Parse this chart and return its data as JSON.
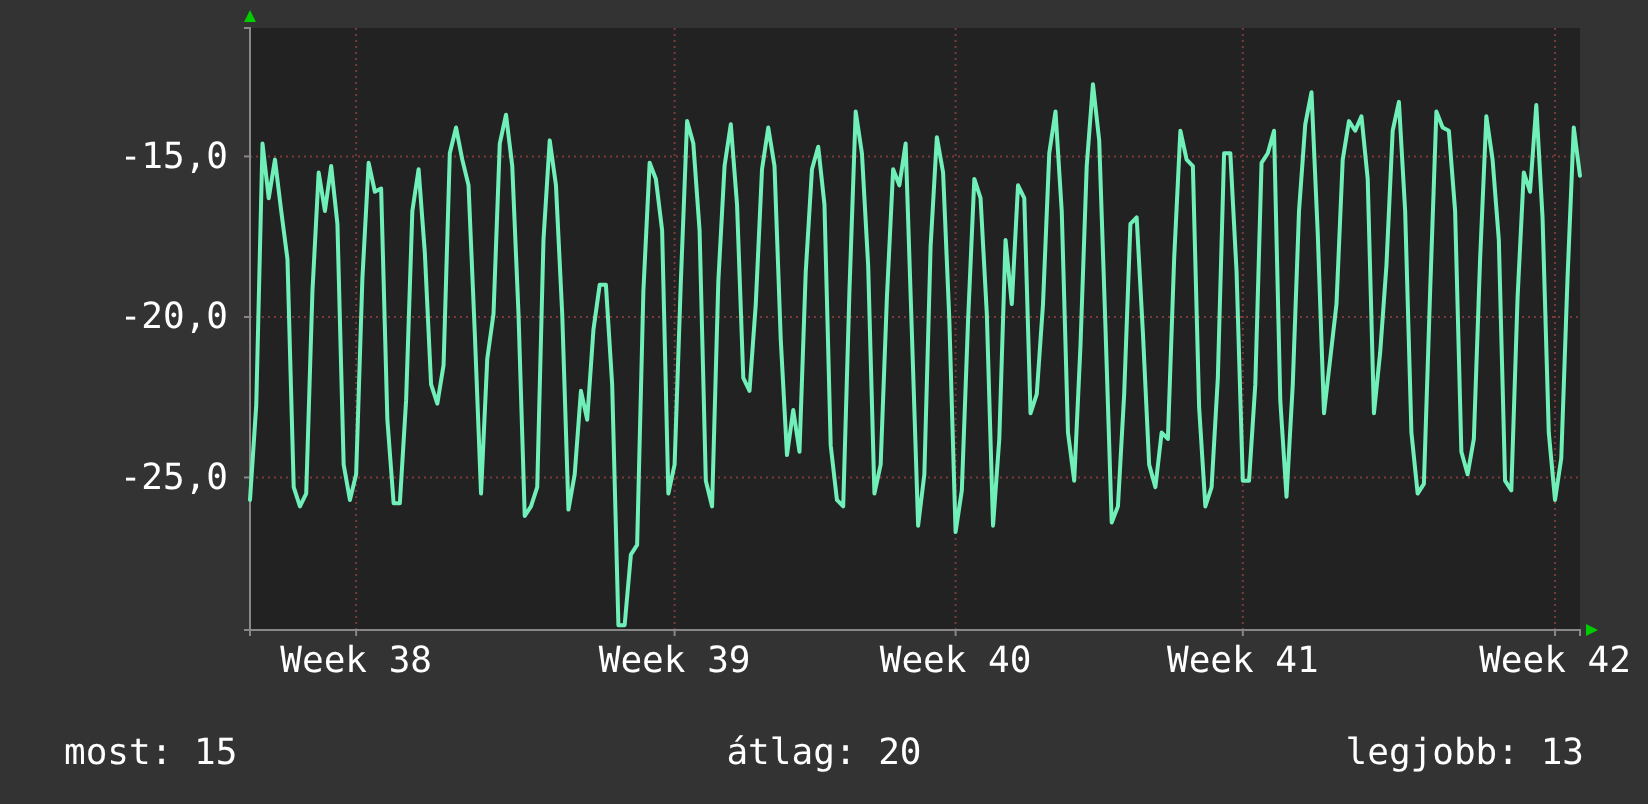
{
  "chart_data": {
    "type": "line",
    "ylim": [
      -29.75,
      -11
    ],
    "categories": [
      null,
      null,
      null,
      null,
      null,
      null,
      null,
      null,
      null,
      null,
      null,
      null,
      null,
      null,
      null,
      null,
      null,
      "Week 38",
      null,
      null,
      null,
      null,
      null,
      null,
      null,
      null,
      null,
      null,
      null,
      null,
      null,
      null,
      null,
      null,
      null,
      null,
      null,
      null,
      null,
      null,
      null,
      null,
      null,
      null,
      null,
      null,
      null,
      null,
      null,
      null,
      null,
      null,
      null,
      null,
      null,
      null,
      null,
      null,
      null,
      null,
      null,
      null,
      null,
      null,
      null,
      null,
      null,
      null,
      "Week 39",
      null,
      null,
      null,
      null,
      null,
      null,
      null,
      null,
      null,
      null,
      null,
      null,
      null,
      null,
      null,
      null,
      null,
      null,
      null,
      null,
      null,
      null,
      null,
      null,
      null,
      null,
      null,
      null,
      null,
      null,
      null,
      null,
      null,
      null,
      null,
      null,
      null,
      null,
      null,
      null,
      null,
      null,
      null,
      null,
      "Week 40",
      null,
      null,
      null,
      null,
      null,
      null,
      null,
      null,
      null,
      null,
      null,
      null,
      null,
      null,
      null,
      null,
      null,
      null,
      null,
      null,
      null,
      null,
      null,
      null,
      null,
      null,
      null,
      null,
      null,
      null,
      null,
      null,
      null,
      null,
      null,
      null,
      null,
      null,
      null,
      null,
      null,
      null,
      null,
      null,
      null,
      "Week 41",
      null,
      null,
      null,
      null,
      null,
      null,
      null,
      null,
      null,
      null,
      null,
      null,
      null,
      null,
      null,
      null,
      null,
      null,
      null,
      null,
      null,
      null,
      null,
      null,
      null,
      null,
      null,
      null,
      null,
      null,
      null,
      null,
      null,
      null,
      null,
      null,
      null,
      null,
      null,
      null,
      null,
      null,
      null,
      null,
      null,
      null,
      null,
      null,
      null,
      "Week 42",
      null,
      null,
      null,
      null
    ],
    "yticks": [
      {
        "value": -25,
        "label": "-25,0"
      },
      {
        "value": -20,
        "label": "-20,0"
      },
      {
        "value": -15,
        "label": "-15,0"
      }
    ],
    "grid": true,
    "annotations": [
      "most: 15",
      "átlag: 20",
      "legjobb: 13"
    ],
    "series": [
      {
        "color": "#70f0b8",
        "values": [
          -25.7,
          -22.75,
          -14.6,
          -16.3,
          -15.1,
          -16.7,
          -18.2,
          -25.3,
          -25.9,
          -25.5,
          -19.2,
          -15.5,
          -16.7,
          -15.3,
          -17.1,
          -24.6,
          -25.7,
          -24.9,
          -18.8,
          -15.2,
          -16.1,
          -16.0,
          -23.2,
          -25.8,
          -25.8,
          -22.6,
          -16.7,
          -15.4,
          -18.0,
          -22.1,
          -22.7,
          -21.5,
          -14.9,
          -14.1,
          -15.1,
          -15.9,
          -20.5,
          -25.5,
          -21.3,
          -19.9,
          -14.6,
          -13.7,
          -15.3,
          -19.9,
          -26.2,
          -25.9,
          -25.3,
          -17.6,
          -14.5,
          -15.9,
          -19.9,
          -26.0,
          -24.9,
          -22.3,
          -23.2,
          -20.4,
          -19.0,
          -19.0,
          -22.1,
          -29.6,
          -29.6,
          -27.4,
          -27.1,
          -19.2,
          -15.2,
          -15.7,
          -17.3,
          -25.5,
          -24.6,
          -18.9,
          -13.9,
          -14.6,
          -17.3,
          -25.1,
          -25.9,
          -18.9,
          -15.3,
          -14.0,
          -16.5,
          -21.9,
          -22.3,
          -19.6,
          -15.4,
          -14.1,
          -15.3,
          -20.7,
          -24.3,
          -22.9,
          -24.2,
          -18.6,
          -15.4,
          -14.7,
          -16.5,
          -24.0,
          -25.7,
          -25.9,
          -19.2,
          -13.6,
          -14.9,
          -18.4,
          -25.5,
          -24.6,
          -19.4,
          -15.4,
          -15.9,
          -14.6,
          -20.5,
          -26.5,
          -24.9,
          -17.8,
          -14.4,
          -15.5,
          -20.1,
          -26.7,
          -25.4,
          -20.1,
          -15.7,
          -16.3,
          -19.9,
          -26.5,
          -23.8,
          -17.6,
          -19.6,
          -15.9,
          -16.3,
          -23.0,
          -22.4,
          -19.6,
          -14.9,
          -13.6,
          -16.7,
          -23.6,
          -25.1,
          -20.9,
          -15.3,
          -12.75,
          -14.5,
          -20.3,
          -26.4,
          -25.9,
          -22.4,
          -17.1,
          -16.9,
          -20.5,
          -24.6,
          -25.3,
          -23.6,
          -23.8,
          -18.2,
          -14.2,
          -15.1,
          -15.3,
          -22.8,
          -25.9,
          -25.3,
          -21.9,
          -14.9,
          -14.9,
          -18.6,
          -25.1,
          -25.1,
          -22.1,
          -15.2,
          -14.9,
          -14.2,
          -22.6,
          -25.6,
          -22.1,
          -16.7,
          -14.0,
          -13.0,
          -17.4,
          -23.0,
          -21.3,
          -19.6,
          -15.1,
          -13.9,
          -14.2,
          -13.75,
          -15.7,
          -23.0,
          -21.1,
          -18.4,
          -14.2,
          -13.3,
          -16.7,
          -23.6,
          -25.5,
          -25.2,
          -19.2,
          -13.6,
          -14.1,
          -14.2,
          -16.7,
          -24.2,
          -24.9,
          -23.8,
          -18.2,
          -13.75,
          -15.1,
          -17.6,
          -25.1,
          -25.4,
          -19.4,
          -15.5,
          -16.1,
          -13.4,
          -16.9,
          -23.6,
          -25.7,
          -24.4,
          -18.8,
          -14.1,
          -15.6
        ]
      }
    ]
  }
}
